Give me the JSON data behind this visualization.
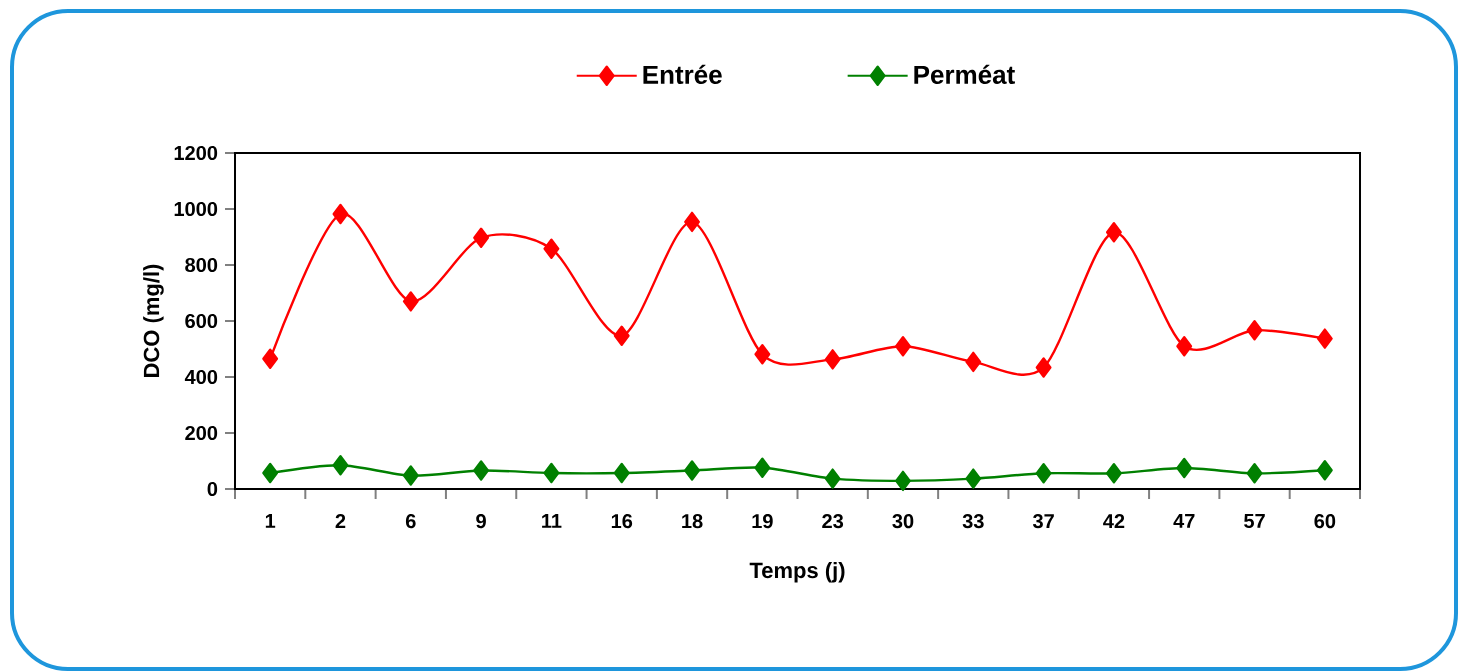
{
  "chart_data": {
    "type": "line",
    "xlabel": "Temps (j)",
    "ylabel": "DCO (mg/l)",
    "categories": [
      "1",
      "2",
      "6",
      "9",
      "11",
      "16",
      "18",
      "19",
      "23",
      "30",
      "33",
      "37",
      "42",
      "47",
      "57",
      "60"
    ],
    "series": [
      {
        "name": "Entrée",
        "color": "#ff0000",
        "values": [
          465,
          982,
          670,
          897,
          858,
          547,
          954,
          481,
          463,
          510,
          454,
          434,
          917,
          510,
          567,
          537
        ]
      },
      {
        "name": "Perméat",
        "color": "#008000",
        "values": [
          57,
          85,
          48,
          66,
          57,
          57,
          66,
          76,
          37,
          29,
          37,
          56,
          56,
          75,
          56,
          67
        ]
      }
    ],
    "ylim": [
      0,
      1200
    ],
    "yticks": [
      0,
      200,
      400,
      600,
      800,
      1000,
      1200
    ],
    "grid": false,
    "legend": "top",
    "marker": "diamond",
    "line_style": "solid"
  }
}
